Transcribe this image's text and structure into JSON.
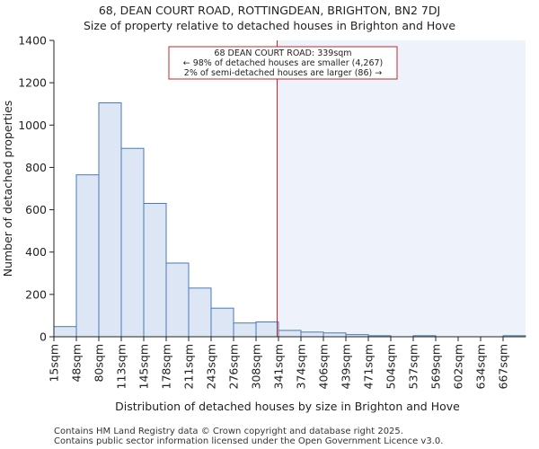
{
  "title_line1": "68, DEAN COURT ROAD, ROTTINGDEAN, BRIGHTON, BN2 7DJ",
  "title_line2": "Size of property relative to detached houses in Brighton and Hove",
  "footer_line1": "Contains HM Land Registry data © Crown copyright and database right 2025.",
  "footer_line2": "Contains public sector information licensed under the Open Government Licence v3.0.",
  "annotation": {
    "line1": "68 DEAN COURT ROAD: 339sqm",
    "line2": "← 98% of detached houses are smaller (4,267)",
    "line3": "2% of semi-detached houses are larger (86) →"
  },
  "colors": {
    "bar_fill": "#dce6f4",
    "bar_stroke": "#4a7ab5",
    "marker_line": "#c0282d",
    "annotation_border": "#c0282d",
    "highlight_region": "#eef2fa"
  },
  "chart_data": {
    "type": "bar",
    "title": "Size of property relative to detached houses in Brighton and Hove",
    "xlabel": "Distribution of detached houses by size in Brighton and Hove",
    "ylabel": "Number of detached properties",
    "ylim": [
      0,
      1400
    ],
    "yticks": [
      0,
      200,
      400,
      600,
      800,
      1000,
      1200,
      1400
    ],
    "categories": [
      "15sqm",
      "48sqm",
      "80sqm",
      "113sqm",
      "145sqm",
      "178sqm",
      "211sqm",
      "243sqm",
      "276sqm",
      "308sqm",
      "341sqm",
      "374sqm",
      "406sqm",
      "439sqm",
      "471sqm",
      "504sqm",
      "537sqm",
      "569sqm",
      "602sqm",
      "634sqm",
      "667sqm"
    ],
    "values": [
      48,
      765,
      1105,
      890,
      630,
      348,
      230,
      135,
      65,
      70,
      30,
      22,
      18,
      10,
      5,
      0,
      5,
      0,
      0,
      0,
      5
    ],
    "property_marker": {
      "value_sqm": 339,
      "label": "68 DEAN COURT ROAD: 339sqm"
    },
    "grid": false
  }
}
